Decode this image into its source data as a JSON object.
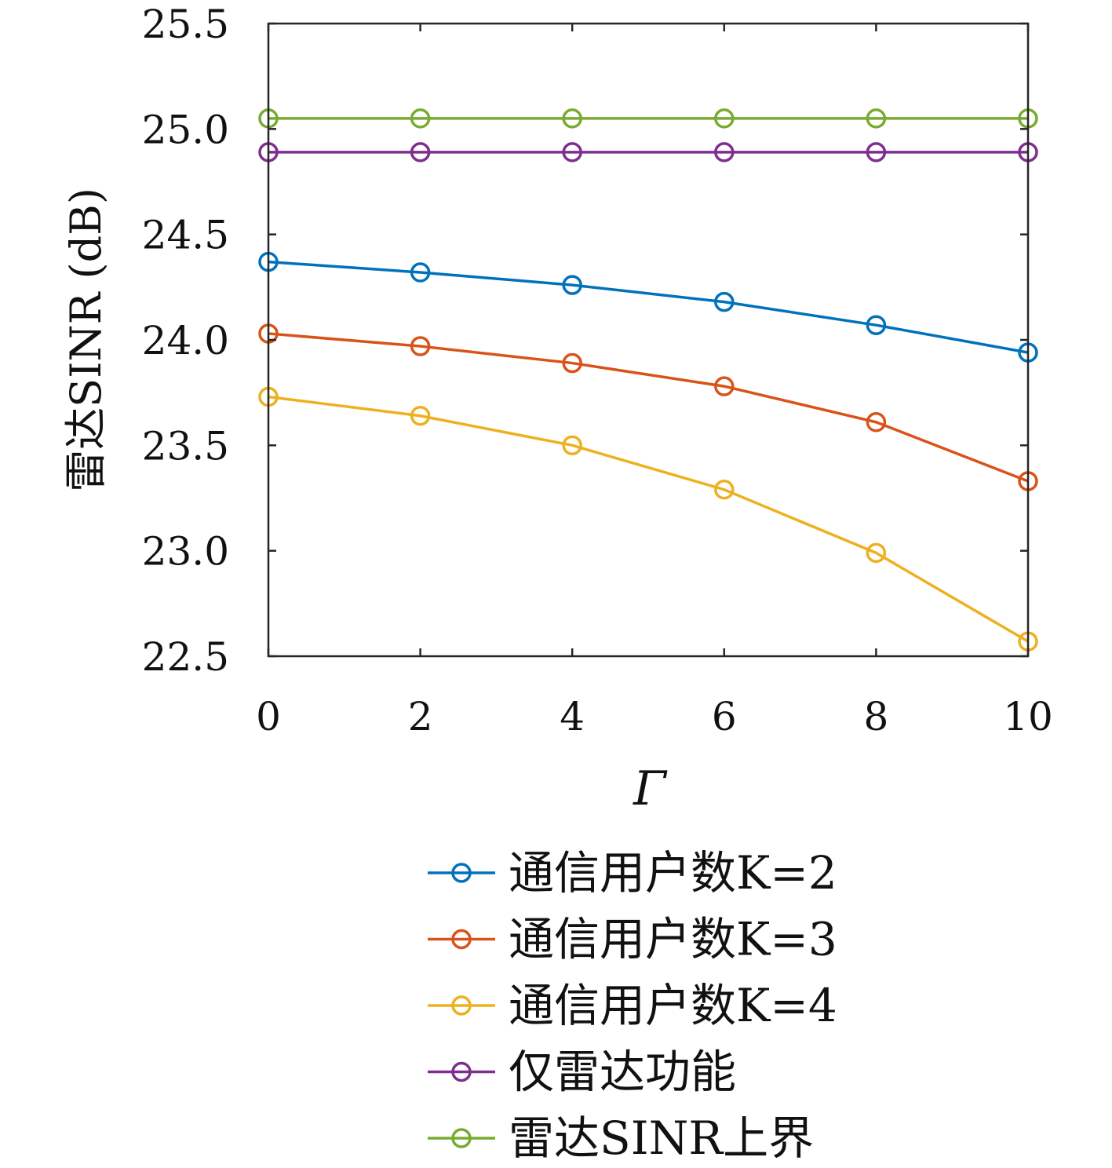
{
  "chart_data": {
    "type": "line",
    "title": "",
    "xlabel": "Γ",
    "ylabel": "雷达SINR (dB)",
    "xlim": [
      0,
      10
    ],
    "ylim": [
      22.5,
      25.5
    ],
    "xticks": [
      0,
      2,
      4,
      6,
      8,
      10
    ],
    "xtick_labels": [
      "0",
      "2",
      "4",
      "6",
      "8",
      "10"
    ],
    "yticks": [
      22.5,
      23.0,
      23.5,
      24.0,
      24.5,
      25.0,
      25.5
    ],
    "ytick_labels": [
      "22.5",
      "23.0",
      "23.5",
      "24.0",
      "24.5",
      "25.0",
      "25.5"
    ],
    "grid": false,
    "legend_position": "below",
    "x": [
      0,
      2,
      4,
      6,
      8,
      10
    ],
    "series": [
      {
        "name": "通信用户数K=2",
        "color": "#0072BD",
        "values": [
          24.37,
          24.32,
          24.26,
          24.18,
          24.07,
          23.94
        ]
      },
      {
        "name": "通信用户数K=3",
        "color": "#D95319",
        "values": [
          24.03,
          23.97,
          23.89,
          23.78,
          23.61,
          23.33
        ]
      },
      {
        "name": "通信用户数K=4",
        "color": "#EDB120",
        "values": [
          23.73,
          23.64,
          23.5,
          23.29,
          22.99,
          22.57
        ]
      },
      {
        "name": "仅雷达功能",
        "color": "#7E2F8E",
        "values": [
          24.89,
          24.89,
          24.89,
          24.89,
          24.89,
          24.89
        ]
      },
      {
        "name": "雷达SINR上界",
        "color": "#77AC30",
        "values": [
          25.05,
          25.05,
          25.05,
          25.05,
          25.05,
          25.05
        ]
      }
    ]
  }
}
